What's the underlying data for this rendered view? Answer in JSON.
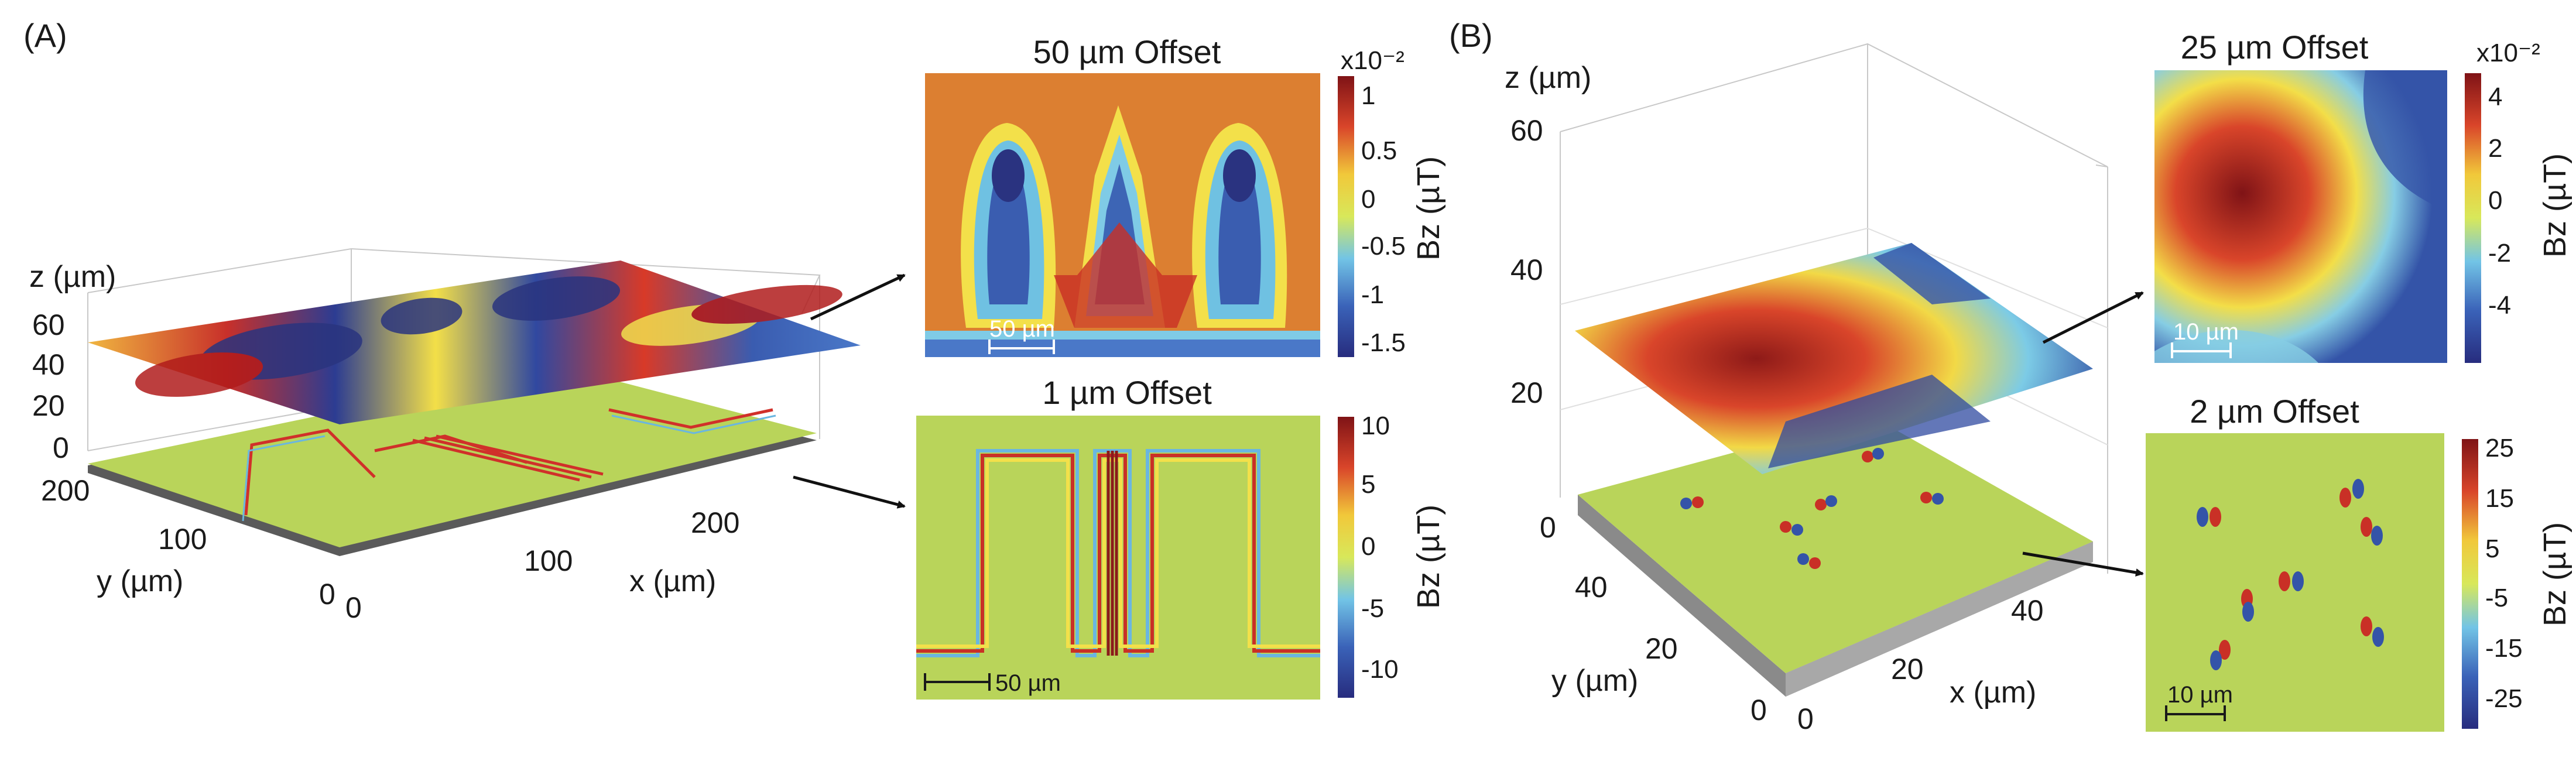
{
  "panel_a": {
    "label": "(A)",
    "axes": {
      "z_label": "z (µm)",
      "y_label": "y (µm)",
      "x_label": "x (µm)",
      "z_ticks": [
        "60",
        "40",
        "20",
        "0"
      ],
      "y_ticks": [
        "200",
        "100",
        "0"
      ],
      "x_ticks": [
        "0",
        "100",
        "200"
      ]
    },
    "inset_top": {
      "title": "50 µm Offset",
      "scale_bar": "50 µm",
      "colorbar": {
        "exponent": "x10⁻²",
        "ticks": [
          "1",
          "0.5",
          "0",
          "-0.5",
          "-1",
          "-1.5"
        ],
        "label": "Bz (µT)"
      }
    },
    "inset_bottom": {
      "title": "1 µm Offset",
      "scale_bar": "50 µm",
      "colorbar": {
        "ticks": [
          "10",
          "5",
          "0",
          "-5",
          "-10"
        ],
        "label": "Bz (µT)"
      }
    }
  },
  "panel_b": {
    "label": "(B)",
    "axes": {
      "z_label": "z (µm)",
      "y_label": "y (µm)",
      "x_label": "x (µm)",
      "z_ticks": [
        "60",
        "40",
        "20",
        "0"
      ],
      "y_ticks": [
        "40",
        "20",
        "0"
      ],
      "x_ticks": [
        "0",
        "20",
        "40"
      ]
    },
    "inset_top": {
      "title": "25 µm Offset",
      "scale_bar": "10 µm",
      "colorbar": {
        "exponent": "x10⁻²",
        "ticks": [
          "4",
          "2",
          "0",
          "-2",
          "-4"
        ],
        "label": "Bz (µT)"
      }
    },
    "inset_bottom": {
      "title": "2 µm Offset",
      "scale_bar": "10 µm",
      "colorbar": {
        "ticks": [
          "25",
          "15",
          "5",
          "-5",
          "-15",
          "-25"
        ],
        "label": "Bz (µT)"
      }
    }
  },
  "colors": {
    "field_high": "#8b1a1a",
    "field_mid": "#e8e84a",
    "field_low": "#2b2f8f",
    "field_zero": "#b9d45a",
    "substrate": "#808080"
  }
}
